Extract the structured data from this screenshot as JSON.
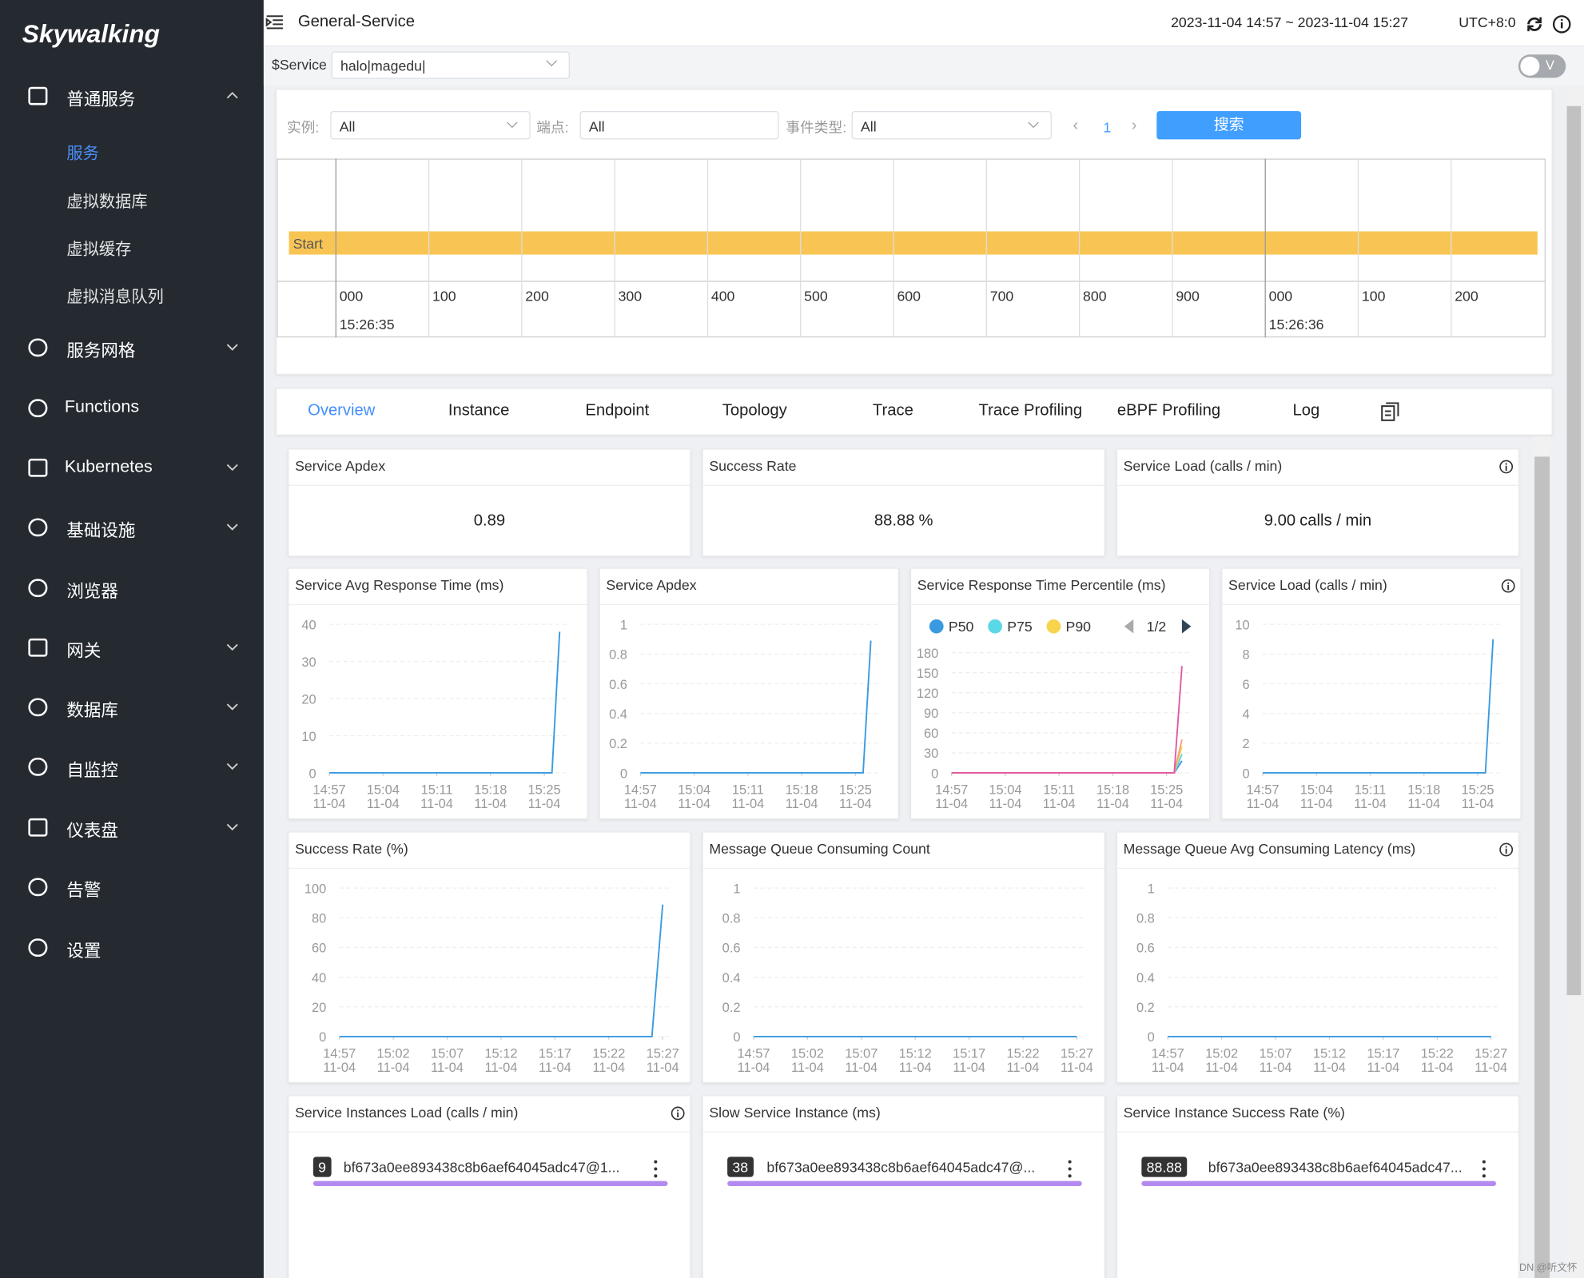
{
  "sidebar": {
    "logo": "Skywalking",
    "menu": [
      {
        "label": "普通服务",
        "collapsible": true,
        "expanded": true,
        "children": [
          "服务",
          "虚拟数据库",
          "虚拟缓存",
          "虚拟消息队列"
        ],
        "active_child": 0
      },
      {
        "label": "服务网格",
        "collapsible": true
      },
      {
        "label": "Functions",
        "collapsible": false
      },
      {
        "label": "Kubernetes",
        "collapsible": true
      },
      {
        "label": "基础设施",
        "collapsible": true
      },
      {
        "label": "浏览器",
        "collapsible": false
      },
      {
        "label": "网关",
        "collapsible": true
      },
      {
        "label": "数据库",
        "collapsible": true
      },
      {
        "label": "自监控",
        "collapsible": true
      },
      {
        "label": "仪表盘",
        "collapsible": true
      },
      {
        "label": "告警",
        "collapsible": false
      },
      {
        "label": "设置",
        "collapsible": false
      }
    ]
  },
  "header": {
    "title": "General-Service",
    "time_range": "2023-11-04 14:57 ~ 2023-11-04 15:27",
    "timezone": "UTC+8:0"
  },
  "toolbar": {
    "variable": "$Service",
    "value": "halo|magedu|",
    "toggle": "V"
  },
  "events": {
    "filters": [
      {
        "label": "实例:",
        "value": "All"
      },
      {
        "label": "端点:",
        "value": "All"
      },
      {
        "label": "事件类型:",
        "value": "All"
      }
    ],
    "page": "1",
    "search": "搜索",
    "event": "Start",
    "ticks": [
      "000",
      "100",
      "200",
      "300",
      "400",
      "500",
      "600",
      "700",
      "800",
      "900",
      "000",
      "100",
      "200"
    ],
    "times": [
      "15:26:35",
      "15:26:36"
    ]
  },
  "tabs": {
    "items": [
      "Overview",
      "Instance",
      "Endpoint",
      "Topology",
      "Trace",
      "Trace Profiling",
      "eBPF Profiling",
      "Log"
    ],
    "active": 0
  },
  "stats": [
    {
      "title": "Service Apdex",
      "value": "0.89"
    },
    {
      "title": "Success Rate",
      "value": "88.88",
      "unit": "%"
    },
    {
      "title": "Service Load (calls / min)",
      "value": "9.00",
      "unit": "calls / min",
      "info": true
    }
  ],
  "chart_data": [
    {
      "type": "line",
      "title": "Service Avg Response Time (ms)",
      "ylim": [
        0,
        40
      ],
      "yticks": [
        0,
        10,
        20,
        30,
        40
      ],
      "xlim": [
        0,
        30
      ],
      "xticks": [
        {
          "value": 0,
          "time": "14:57",
          "date": "11-04"
        },
        {
          "value": 7,
          "time": "15:04",
          "date": "11-04"
        },
        {
          "value": 14,
          "time": "15:11",
          "date": "11-04"
        },
        {
          "value": 21,
          "time": "15:18",
          "date": "11-04"
        },
        {
          "value": 28,
          "time": "15:25",
          "date": "11-04"
        }
      ],
      "series": [
        {
          "color": "#3a9ae0",
          "values": [
            0,
            0,
            0,
            0,
            0,
            0,
            0,
            0,
            0,
            0,
            0,
            0,
            0,
            0,
            0,
            0,
            0,
            0,
            0,
            0,
            0,
            0,
            0,
            0,
            0,
            0,
            0,
            0,
            0,
            0,
            38
          ]
        }
      ]
    },
    {
      "type": "line",
      "title": "Service Apdex",
      "ylim": [
        0,
        1
      ],
      "yticks": [
        0,
        0.2,
        0.4,
        0.6,
        0.8,
        1
      ],
      "xlim": [
        0,
        30
      ],
      "xticks": [
        {
          "value": 0,
          "time": "14:57",
          "date": "11-04"
        },
        {
          "value": 7,
          "time": "15:04",
          "date": "11-04"
        },
        {
          "value": 14,
          "time": "15:11",
          "date": "11-04"
        },
        {
          "value": 21,
          "time": "15:18",
          "date": "11-04"
        },
        {
          "value": 28,
          "time": "15:25",
          "date": "11-04"
        }
      ],
      "series": [
        {
          "color": "#3a9ae0",
          "values": [
            0,
            0,
            0,
            0,
            0,
            0,
            0,
            0,
            0,
            0,
            0,
            0,
            0,
            0,
            0,
            0,
            0,
            0,
            0,
            0,
            0,
            0,
            0,
            0,
            0,
            0,
            0,
            0,
            0,
            0,
            0.89
          ]
        }
      ]
    },
    {
      "type": "line",
      "title": "Service Response Time Percentile (ms)",
      "ylim": [
        0,
        180
      ],
      "yticks": [
        0,
        30,
        60,
        90,
        120,
        150,
        180
      ],
      "xlim": [
        0,
        30
      ],
      "xticks": [
        {
          "value": 0,
          "time": "14:57",
          "date": "11-04"
        },
        {
          "value": 7,
          "time": "15:04",
          "date": "11-04"
        },
        {
          "value": 14,
          "time": "15:11",
          "date": "11-04"
        },
        {
          "value": 21,
          "time": "15:18",
          "date": "11-04"
        },
        {
          "value": 28,
          "time": "15:25",
          "date": "11-04"
        }
      ],
      "legend": true,
      "legend_page": "1/2",
      "series": [
        {
          "name": "P50",
          "color": "#3a9ae0",
          "values": [
            0,
            0,
            0,
            0,
            0,
            0,
            0,
            0,
            0,
            0,
            0,
            0,
            0,
            0,
            0,
            0,
            0,
            0,
            0,
            0,
            0,
            0,
            0,
            0,
            0,
            0,
            0,
            0,
            0,
            0,
            18
          ]
        },
        {
          "name": "P75",
          "color": "#5ad8e6",
          "values": [
            0,
            0,
            0,
            0,
            0,
            0,
            0,
            0,
            0,
            0,
            0,
            0,
            0,
            0,
            0,
            0,
            0,
            0,
            0,
            0,
            0,
            0,
            0,
            0,
            0,
            0,
            0,
            0,
            0,
            0,
            28
          ]
        },
        {
          "name": "P90",
          "color": "#f7d44c",
          "values": [
            0,
            0,
            0,
            0,
            0,
            0,
            0,
            0,
            0,
            0,
            0,
            0,
            0,
            0,
            0,
            0,
            0,
            0,
            0,
            0,
            0,
            0,
            0,
            0,
            0,
            0,
            0,
            0,
            0,
            0,
            40
          ]
        },
        {
          "color": "#f8a07e",
          "values": [
            0,
            0,
            0,
            0,
            0,
            0,
            0,
            0,
            0,
            0,
            0,
            0,
            0,
            0,
            0,
            0,
            0,
            0,
            0,
            0,
            0,
            0,
            0,
            0,
            0,
            0,
            0,
            0,
            0,
            0,
            50
          ]
        },
        {
          "color": "#e05aa5",
          "values": [
            0,
            0,
            0,
            0,
            0,
            0,
            0,
            0,
            0,
            0,
            0,
            0,
            0,
            0,
            0,
            0,
            0,
            0,
            0,
            0,
            0,
            0,
            0,
            0,
            0,
            0,
            0,
            0,
            0,
            0,
            160
          ]
        }
      ]
    },
    {
      "type": "line",
      "title": "Service Load (calls / min)",
      "info": true,
      "ylim": [
        0,
        10
      ],
      "yticks": [
        0,
        2,
        4,
        6,
        8,
        10
      ],
      "xlim": [
        0,
        30
      ],
      "xticks": [
        {
          "value": 0,
          "time": "14:57",
          "date": "11-04"
        },
        {
          "value": 7,
          "time": "15:04",
          "date": "11-04"
        },
        {
          "value": 14,
          "time": "15:11",
          "date": "11-04"
        },
        {
          "value": 21,
          "time": "15:18",
          "date": "11-04"
        },
        {
          "value": 28,
          "time": "15:25",
          "date": "11-04"
        }
      ],
      "series": [
        {
          "color": "#3a9ae0",
          "values": [
            0,
            0,
            0,
            0,
            0,
            0,
            0,
            0,
            0,
            0,
            0,
            0,
            0,
            0,
            0,
            0,
            0,
            0,
            0,
            0,
            0,
            0,
            0,
            0,
            0,
            0,
            0,
            0,
            0,
            0,
            9
          ]
        }
      ]
    },
    {
      "type": "line",
      "title": "Success Rate (%)",
      "ylim": [
        0,
        100
      ],
      "yticks": [
        0,
        20,
        40,
        60,
        80,
        100
      ],
      "xlim": [
        0,
        30
      ],
      "xticks": [
        {
          "value": 0,
          "time": "14:57",
          "date": "11-04"
        },
        {
          "value": 5,
          "time": "15:02",
          "date": "11-04"
        },
        {
          "value": 10,
          "time": "15:07",
          "date": "11-04"
        },
        {
          "value": 15,
          "time": "15:12",
          "date": "11-04"
        },
        {
          "value": 20,
          "time": "15:17",
          "date": "11-04"
        },
        {
          "value": 25,
          "time": "15:22",
          "date": "11-04"
        },
        {
          "value": 30,
          "time": "15:27",
          "date": "11-04"
        }
      ],
      "series": [
        {
          "color": "#3a9ae0",
          "values": [
            0,
            0,
            0,
            0,
            0,
            0,
            0,
            0,
            0,
            0,
            0,
            0,
            0,
            0,
            0,
            0,
            0,
            0,
            0,
            0,
            0,
            0,
            0,
            0,
            0,
            0,
            0,
            0,
            0,
            0,
            88.88
          ]
        }
      ]
    },
    {
      "type": "line",
      "title": "Message Queue Consuming Count",
      "ylim": [
        0,
        1
      ],
      "yticks": [
        0,
        0.2,
        0.4,
        0.6,
        0.8,
        1
      ],
      "xlim": [
        0,
        30
      ],
      "xticks": [
        {
          "value": 0,
          "time": "14:57",
          "date": "11-04"
        },
        {
          "value": 5,
          "time": "15:02",
          "date": "11-04"
        },
        {
          "value": 10,
          "time": "15:07",
          "date": "11-04"
        },
        {
          "value": 15,
          "time": "15:12",
          "date": "11-04"
        },
        {
          "value": 20,
          "time": "15:17",
          "date": "11-04"
        },
        {
          "value": 25,
          "time": "15:22",
          "date": "11-04"
        },
        {
          "value": 30,
          "time": "15:27",
          "date": "11-04"
        }
      ],
      "series": [
        {
          "color": "#3a9ae0",
          "values": [
            0,
            0,
            0,
            0,
            0,
            0,
            0,
            0,
            0,
            0,
            0,
            0,
            0,
            0,
            0,
            0,
            0,
            0,
            0,
            0,
            0,
            0,
            0,
            0,
            0,
            0,
            0,
            0,
            0,
            0,
            0
          ]
        }
      ]
    },
    {
      "type": "line",
      "title": "Message Queue Avg Consuming Latency (ms)",
      "info": true,
      "ylim": [
        0,
        1
      ],
      "yticks": [
        0,
        0.2,
        0.4,
        0.6,
        0.8,
        1
      ],
      "xlim": [
        0,
        30
      ],
      "xticks": [
        {
          "value": 0,
          "time": "14:57",
          "date": "11-04"
        },
        {
          "value": 5,
          "time": "15:02",
          "date": "11-04"
        },
        {
          "value": 10,
          "time": "15:07",
          "date": "11-04"
        },
        {
          "value": 15,
          "time": "15:12",
          "date": "11-04"
        },
        {
          "value": 20,
          "time": "15:17",
          "date": "11-04"
        },
        {
          "value": 25,
          "time": "15:22",
          "date": "11-04"
        },
        {
          "value": 30,
          "time": "15:27",
          "date": "11-04"
        }
      ],
      "series": [
        {
          "color": "#3a9ae0",
          "values": [
            0,
            0,
            0,
            0,
            0,
            0,
            0,
            0,
            0,
            0,
            0,
            0,
            0,
            0,
            0,
            0,
            0,
            0,
            0,
            0,
            0,
            0,
            0,
            0,
            0,
            0,
            0,
            0,
            0,
            0,
            0
          ]
        }
      ]
    }
  ],
  "lists": [
    {
      "title": "Service Instances Load (calls / min)",
      "info": true,
      "items": [
        {
          "value": "9",
          "label": "bf673a0ee893438c8b6aef64045adc47@1..."
        }
      ]
    },
    {
      "title": "Slow Service Instance (ms)",
      "items": [
        {
          "value": "38",
          "label": "bf673a0ee893438c8b6aef64045adc47@..."
        }
      ]
    },
    {
      "title": "Service Instance Success Rate (%)",
      "items": [
        {
          "value": "88.88",
          "label": "bf673a0ee893438c8b6aef64045adc47..."
        }
      ]
    }
  ],
  "watermark": "CSDN @听文怀"
}
